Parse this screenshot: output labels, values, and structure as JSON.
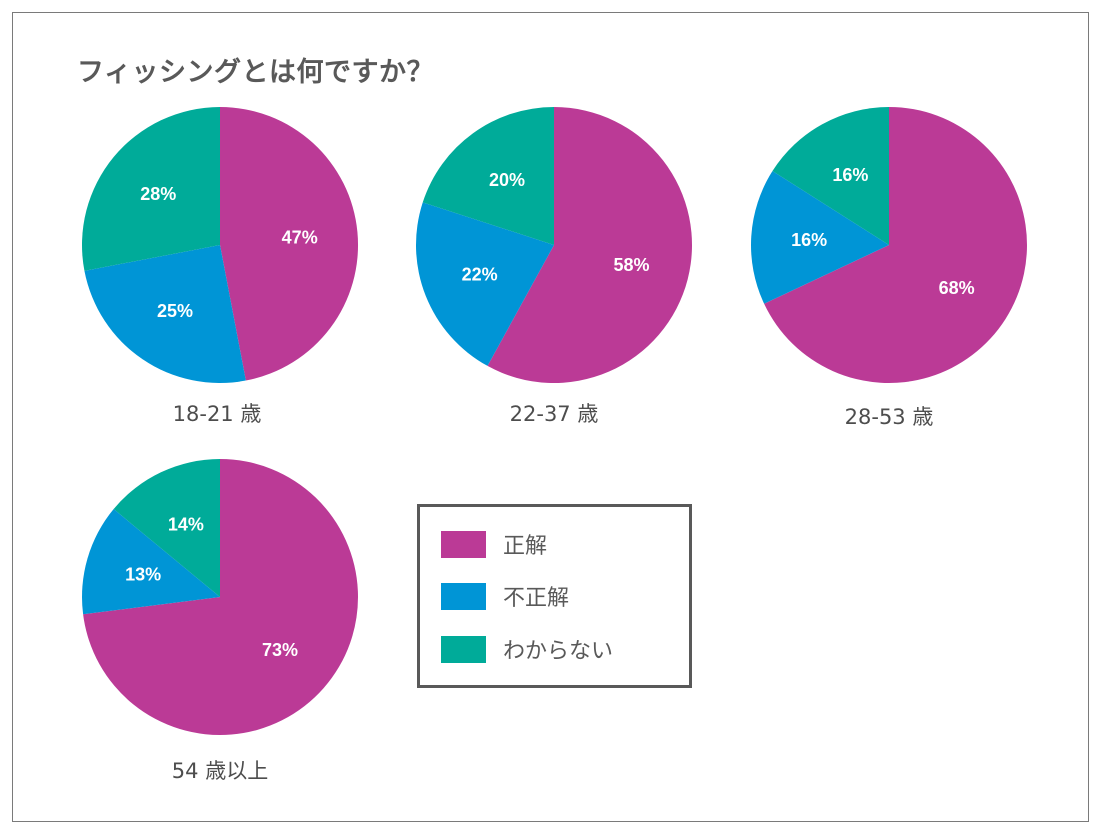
{
  "title": "フィッシングとは何ですか？",
  "colors": {
    "correct": "#bb3a96",
    "incorrect": "#0095d6",
    "dont_know": "#00ab99"
  },
  "legend": [
    {
      "label": "正解",
      "color": "#bb3a96"
    },
    {
      "label": "不正解",
      "color": "#0095d6"
    },
    {
      "label": "わからない",
      "color": "#00ab99"
    }
  ],
  "chart_data": [
    {
      "type": "pie",
      "title": "18-21 歳",
      "categories": [
        "正解",
        "不正解",
        "わからない"
      ],
      "values": [
        47,
        25,
        28
      ],
      "labels": [
        "47%",
        "25%",
        "28%"
      ]
    },
    {
      "type": "pie",
      "title": "22-37 歳",
      "categories": [
        "正解",
        "不正解",
        "わからない"
      ],
      "values": [
        58,
        22,
        20
      ],
      "labels": [
        "58%",
        "22%",
        "20%"
      ]
    },
    {
      "type": "pie",
      "title": "28-53 歳",
      "categories": [
        "正解",
        "不正解",
        "わからない"
      ],
      "values": [
        68,
        16,
        16
      ],
      "labels": [
        "68%",
        "16%",
        "16%"
      ]
    },
    {
      "type": "pie",
      "title": "54 歳以上",
      "categories": [
        "正解",
        "不正解",
        "わからない"
      ],
      "values": [
        73,
        13,
        14
      ],
      "labels": [
        "73%",
        "13%",
        "14%"
      ]
    }
  ]
}
